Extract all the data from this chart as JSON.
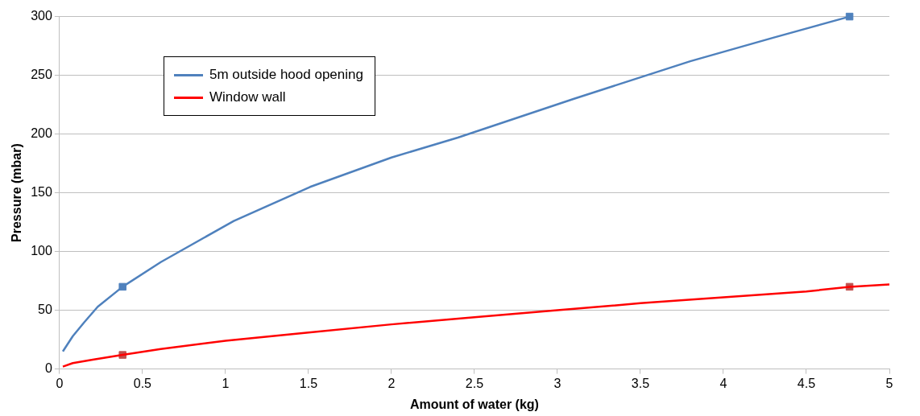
{
  "chart_data": {
    "type": "line",
    "xlabel": "Amount of water (kg)",
    "ylabel": "Pressure (mbar)",
    "xlim": [
      0,
      5
    ],
    "xticks": [
      0,
      0.5,
      1,
      1.5,
      2,
      2.5,
      3,
      3.5,
      4,
      4.5,
      5
    ],
    "ylim": [
      0,
      300
    ],
    "yticks": [
      0,
      50,
      100,
      150,
      200,
      250,
      300
    ],
    "grid": "y",
    "legend": "top left",
    "line_style": "solid",
    "series": [
      {
        "name": "5m outside hood opening",
        "marker": "none",
        "color": "#4f81bd",
        "x": [
          0.02,
          0.08,
          0.15,
          0.23,
          0.38,
          0.61,
          1.05,
          1.51,
          2,
          2.4,
          3.1,
          3.8,
          4.3,
          4.76
        ],
        "values": [
          15,
          28,
          40,
          53,
          70,
          91,
          126,
          155,
          180,
          197,
          230,
          262,
          282,
          300
        ]
      },
      {
        "name": "Window wall",
        "marker": "none",
        "color": "#ff0000",
        "x": [
          0.02,
          0.08,
          0.2,
          0.38,
          0.61,
          1,
          1.5,
          2,
          2.5,
          3,
          3.5,
          4,
          4.5,
          4.76,
          5
        ],
        "values": [
          2,
          5,
          8,
          12,
          17,
          24,
          31,
          38,
          44,
          50,
          56,
          61,
          66,
          70,
          72
        ]
      },
      {
        "type": "scatter",
        "marker": "square",
        "color": "#4f81bd",
        "x": [
          0.38,
          4.76
        ],
        "values": [
          70,
          300
        ]
      },
      {
        "type": "scatter",
        "marker": "square",
        "color": "#c0504d",
        "x": [
          0.38,
          4.76
        ],
        "values": [
          12,
          70
        ]
      }
    ]
  }
}
